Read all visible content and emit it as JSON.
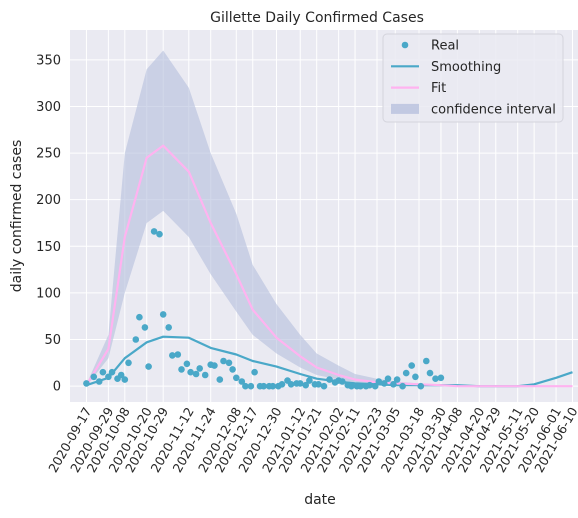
{
  "chart_data": {
    "type": "line",
    "title": "Gillette Daily Confirmed Cases",
    "xlabel": "date",
    "ylabel": "daily confirmed cases",
    "x_range": [
      "2020-09-08",
      "2021-06-13"
    ],
    "ylim": [
      -17,
      382
    ],
    "yticks": [
      0,
      50,
      100,
      150,
      200,
      250,
      300,
      350
    ],
    "xticks": [
      "2020-09-17",
      "2020-09-29",
      "2020-10-08",
      "2020-10-20",
      "2020-10-29",
      "2020-11-12",
      "2020-11-24",
      "2020-12-08",
      "2020-12-17",
      "2020-12-30",
      "2021-01-12",
      "2021-01-21",
      "2021-02-02",
      "2021-02-11",
      "2021-02-23",
      "2021-03-05",
      "2021-03-18",
      "2021-03-30",
      "2021-04-08",
      "2021-04-20",
      "2021-04-29",
      "2021-05-11",
      "2021-05-20",
      "2021-06-01",
      "2021-06-10"
    ],
    "grid": true,
    "background": "#eaeaf2",
    "legend_position": "top-right",
    "series": [
      {
        "name": "Real",
        "kind": "scatter",
        "color": "#4aa8c8",
        "points": [
          [
            "2020-09-17",
            3
          ],
          [
            "2020-09-21",
            10
          ],
          [
            "2020-09-24",
            5
          ],
          [
            "2020-09-26",
            15
          ],
          [
            "2020-09-29",
            10
          ],
          [
            "2020-10-01",
            15
          ],
          [
            "2020-10-04",
            8
          ],
          [
            "2020-10-06",
            12
          ],
          [
            "2020-10-08",
            7
          ],
          [
            "2020-10-10",
            25
          ],
          [
            "2020-10-14",
            50
          ],
          [
            "2020-10-16",
            74
          ],
          [
            "2020-10-19",
            63
          ],
          [
            "2020-10-21",
            21
          ],
          [
            "2020-10-24",
            166
          ],
          [
            "2020-10-27",
            163
          ],
          [
            "2020-10-29",
            77
          ],
          [
            "2020-11-01",
            63
          ],
          [
            "2020-11-03",
            33
          ],
          [
            "2020-11-06",
            34
          ],
          [
            "2020-11-08",
            18
          ],
          [
            "2020-11-11",
            24
          ],
          [
            "2020-11-13",
            15
          ],
          [
            "2020-11-16",
            13
          ],
          [
            "2020-11-18",
            19
          ],
          [
            "2020-11-21",
            12
          ],
          [
            "2020-11-24",
            23
          ],
          [
            "2020-11-26",
            22
          ],
          [
            "2020-11-29",
            7
          ],
          [
            "2020-12-01",
            27
          ],
          [
            "2020-12-04",
            25
          ],
          [
            "2020-12-06",
            18
          ],
          [
            "2020-12-08",
            9
          ],
          [
            "2020-12-11",
            5
          ],
          [
            "2020-12-13",
            0
          ],
          [
            "2020-12-16",
            0
          ],
          [
            "2020-12-18",
            15
          ],
          [
            "2020-12-21",
            0
          ],
          [
            "2020-12-23",
            0
          ],
          [
            "2020-12-26",
            0
          ],
          [
            "2020-12-28",
            0
          ],
          [
            "2020-12-31",
            0
          ],
          [
            "2021-01-02",
            2
          ],
          [
            "2021-01-05",
            6
          ],
          [
            "2021-01-07",
            2
          ],
          [
            "2021-01-10",
            3
          ],
          [
            "2021-01-12",
            3
          ],
          [
            "2021-01-15",
            1
          ],
          [
            "2021-01-17",
            6
          ],
          [
            "2021-01-20",
            2
          ],
          [
            "2021-01-22",
            2
          ],
          [
            "2021-01-25",
            0
          ],
          [
            "2021-01-28",
            7
          ],
          [
            "2021-01-31",
            4
          ],
          [
            "2021-02-02",
            6
          ],
          [
            "2021-02-04",
            5
          ],
          [
            "2021-02-07",
            1
          ],
          [
            "2021-02-09",
            0
          ],
          [
            "2021-02-12",
            0
          ],
          [
            "2021-02-14",
            0
          ],
          [
            "2021-02-17",
            0
          ],
          [
            "2021-02-19",
            1
          ],
          [
            "2021-02-22",
            0
          ],
          [
            "2021-02-24",
            5
          ],
          [
            "2021-02-27",
            3
          ],
          [
            "2021-03-01",
            8
          ],
          [
            "2021-03-04",
            2
          ],
          [
            "2021-03-06",
            7
          ],
          [
            "2021-03-09",
            0
          ],
          [
            "2021-03-11",
            14
          ],
          [
            "2021-03-14",
            22
          ],
          [
            "2021-03-16",
            10
          ],
          [
            "2021-03-19",
            0
          ],
          [
            "2021-03-22",
            27
          ],
          [
            "2021-03-24",
            14
          ],
          [
            "2021-03-27",
            8
          ],
          [
            "2021-03-30",
            9
          ]
        ]
      },
      {
        "name": "Smoothing",
        "kind": "line",
        "color": "#4aa8c8",
        "points": [
          [
            "2020-09-17",
            1
          ],
          [
            "2020-09-29",
            9
          ],
          [
            "2020-10-08",
            30
          ],
          [
            "2020-10-20",
            47
          ],
          [
            "2020-10-29",
            53
          ],
          [
            "2020-11-12",
            52
          ],
          [
            "2020-11-24",
            41
          ],
          [
            "2020-12-08",
            34
          ],
          [
            "2020-12-17",
            27
          ],
          [
            "2020-12-30",
            21
          ],
          [
            "2021-01-12",
            13
          ],
          [
            "2021-01-21",
            8
          ],
          [
            "2021-02-02",
            5
          ],
          [
            "2021-02-11",
            3
          ],
          [
            "2021-02-23",
            2
          ],
          [
            "2021-03-05",
            1
          ],
          [
            "2021-03-18",
            1
          ],
          [
            "2021-03-30",
            1
          ],
          [
            "2021-04-08",
            1
          ],
          [
            "2021-04-20",
            0
          ],
          [
            "2021-04-29",
            0
          ],
          [
            "2021-05-11",
            0
          ],
          [
            "2021-05-20",
            2
          ],
          [
            "2021-06-01",
            9
          ],
          [
            "2021-06-10",
            15
          ]
        ]
      },
      {
        "name": "Fit",
        "kind": "line",
        "color": "#ffb3f0",
        "points": [
          [
            "2020-09-17",
            1
          ],
          [
            "2020-09-29",
            40
          ],
          [
            "2020-10-08",
            160
          ],
          [
            "2020-10-20",
            245
          ],
          [
            "2020-10-29",
            258
          ],
          [
            "2020-11-12",
            230
          ],
          [
            "2020-11-24",
            175
          ],
          [
            "2020-12-08",
            120
          ],
          [
            "2020-12-17",
            82
          ],
          [
            "2020-12-30",
            52
          ],
          [
            "2021-01-12",
            32
          ],
          [
            "2021-01-21",
            20
          ],
          [
            "2021-02-02",
            12
          ],
          [
            "2021-02-11",
            7
          ],
          [
            "2021-02-23",
            4
          ],
          [
            "2021-03-05",
            3
          ],
          [
            "2021-03-18",
            2
          ],
          [
            "2021-03-30",
            1
          ],
          [
            "2021-04-08",
            0
          ],
          [
            "2021-04-20",
            0
          ],
          [
            "2021-04-29",
            0
          ],
          [
            "2021-05-11",
            0
          ],
          [
            "2021-05-20",
            0
          ],
          [
            "2021-06-01",
            0
          ],
          [
            "2021-06-10",
            0
          ]
        ]
      },
      {
        "name": "confidence interval",
        "kind": "band",
        "color": "#b4bedc",
        "points": [
          [
            "2020-09-17",
            0,
            2
          ],
          [
            "2020-09-29",
            30,
            55
          ],
          [
            "2020-10-08",
            100,
            250
          ],
          [
            "2020-10-20",
            175,
            340
          ],
          [
            "2020-10-29",
            188,
            360
          ],
          [
            "2020-11-12",
            160,
            320
          ],
          [
            "2020-11-24",
            120,
            250
          ],
          [
            "2020-12-08",
            80,
            185
          ],
          [
            "2020-12-17",
            55,
            130
          ],
          [
            "2020-12-30",
            35,
            88
          ],
          [
            "2021-01-12",
            20,
            55
          ],
          [
            "2021-01-21",
            12,
            35
          ],
          [
            "2021-02-02",
            7,
            22
          ],
          [
            "2021-02-11",
            4,
            13
          ],
          [
            "2021-02-23",
            2,
            8
          ],
          [
            "2021-03-05",
            1,
            5
          ],
          [
            "2021-03-18",
            0,
            3
          ],
          [
            "2021-03-30",
            0,
            2
          ],
          [
            "2021-04-08",
            0,
            1
          ],
          [
            "2021-04-20",
            0,
            1
          ],
          [
            "2021-04-29",
            0,
            1
          ],
          [
            "2021-05-11",
            0,
            0
          ],
          [
            "2021-05-20",
            0,
            0
          ],
          [
            "2021-06-01",
            0,
            0
          ],
          [
            "2021-06-10",
            0,
            0
          ]
        ]
      }
    ]
  }
}
